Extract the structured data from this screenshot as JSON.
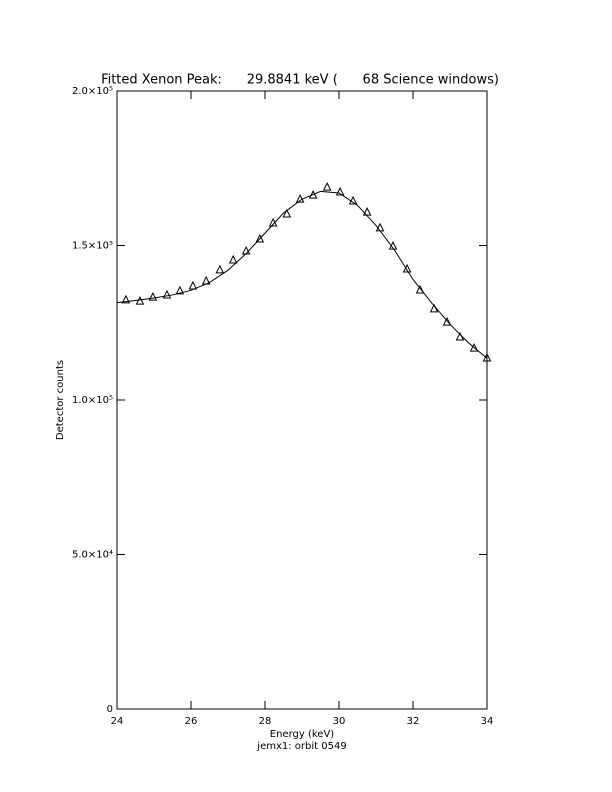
{
  "chart_data": {
    "type": "scatter",
    "title": "Fitted Xenon Peak:      29.8841 keV (      68 Science windows)",
    "x_label": "Energy (keV)",
    "y_label": "Detector counts",
    "footer": "jemx1: orbit 0549",
    "xlim": [
      24,
      34
    ],
    "ylim": [
      0,
      200000
    ],
    "xticks": [
      24,
      26,
      28,
      30,
      32,
      34
    ],
    "yticks": [
      0,
      {
        "value": 50000,
        "label": "5.0×10⁴"
      },
      {
        "value": 100000,
        "label": "1.0×10⁵"
      },
      {
        "value": 150000,
        "label": "1.5×10⁵"
      },
      {
        "value": 200000,
        "label": "2.0×10⁵"
      }
    ],
    "series": [
      {
        "marker": "triangle",
        "color": "#000000",
        "x": [
          24.24,
          24.62,
          24.97,
          25.35,
          25.7,
          26.05,
          26.41,
          26.78,
          27.14,
          27.49,
          27.86,
          28.22,
          28.59,
          28.95,
          29.3,
          29.68,
          30.03,
          30.38,
          30.76,
          31.11,
          31.46,
          31.84,
          32.19,
          32.57,
          32.92,
          33.27,
          33.65,
          34.0
        ],
        "values": [
          132400,
          132000,
          133300,
          134000,
          135300,
          136900,
          138500,
          142100,
          145300,
          148200,
          152100,
          157300,
          160200,
          165000,
          166300,
          168900,
          167300,
          164400,
          160800,
          155700,
          149800,
          142400,
          135600,
          129500,
          125200,
          120400,
          116800,
          113600
        ]
      },
      {
        "marker": "line",
        "color": "#000000",
        "x": [
          24,
          24.5,
          25,
          25.5,
          26,
          26.5,
          27,
          27.5,
          28,
          28.5,
          29,
          29.5,
          30,
          30.5,
          31,
          31.5,
          32,
          32.5,
          33,
          33.5,
          34
        ],
        "values": [
          131500,
          132200,
          133000,
          134000,
          135500,
          138000,
          142000,
          147500,
          154000,
          160500,
          165000,
          167500,
          167000,
          163000,
          156500,
          148500,
          139000,
          131500,
          124500,
          118500,
          113500
        ]
      }
    ]
  }
}
